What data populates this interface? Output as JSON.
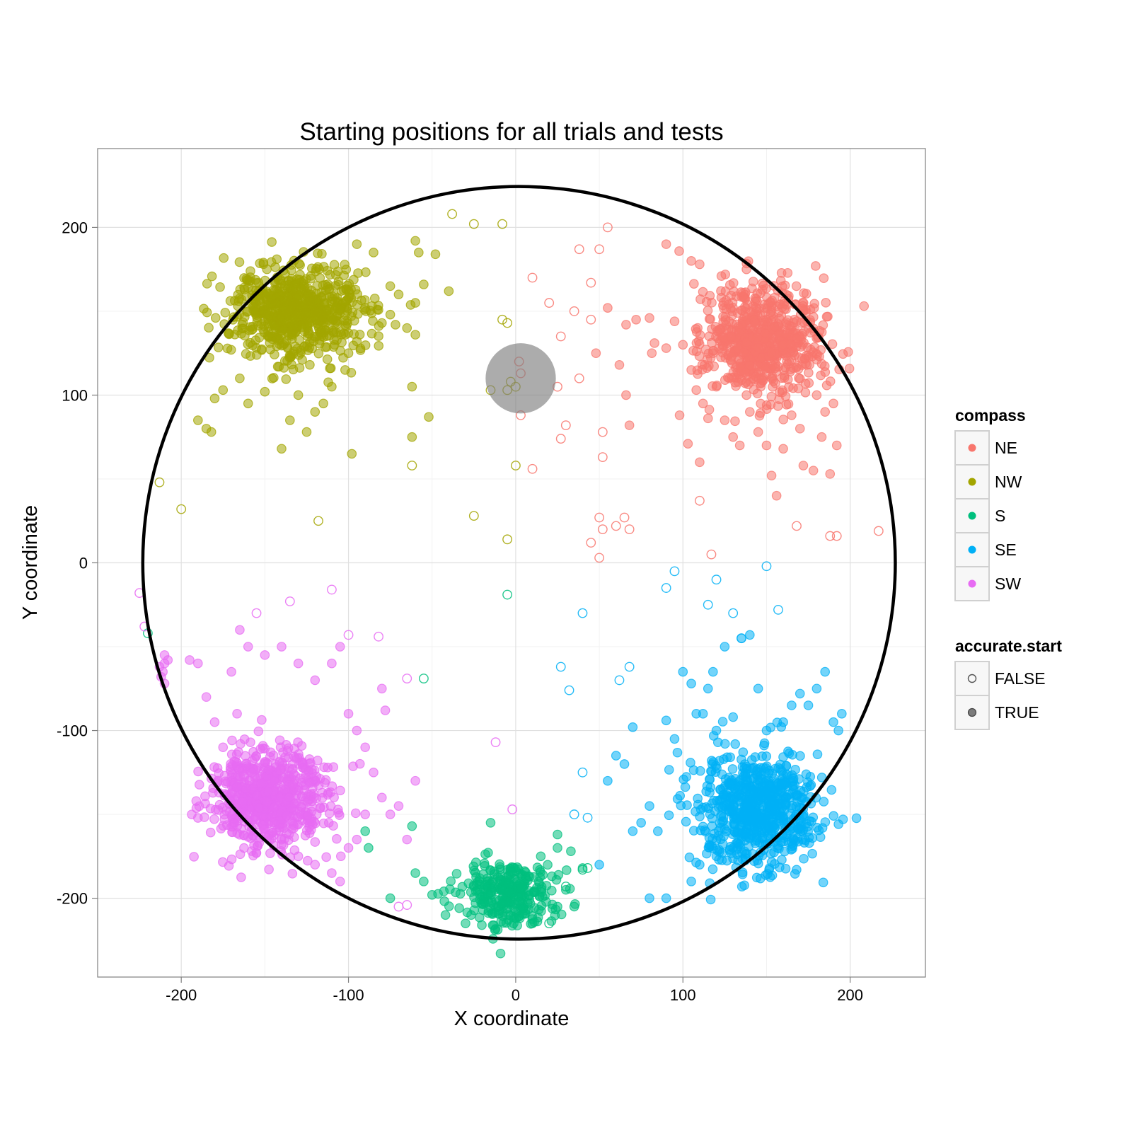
{
  "chart_data": {
    "type": "scatter",
    "title": "Starting positions for all trials and tests",
    "xlabel": "X coordinate",
    "ylabel": "Y coordinate",
    "xlim": [
      -250,
      245
    ],
    "ylim": [
      -247,
      247
    ],
    "x_ticks": [
      -200,
      -100,
      0,
      100,
      200
    ],
    "y_ticks": [
      -200,
      -100,
      0,
      100,
      200
    ],
    "x_tick_labels": [
      "-200",
      "-100",
      "0",
      "100",
      "200"
    ],
    "y_tick_labels": [
      "-200",
      "-100",
      "0",
      "100",
      "200"
    ],
    "grid": true,
    "arena_circle": {
      "cx": 2,
      "cy": 0,
      "r": 225
    },
    "platform": {
      "x": 3,
      "y": 110,
      "r": 21
    },
    "legends": [
      {
        "title": "compass",
        "entries": [
          {
            "label": "NE",
            "color": "#F8766D"
          },
          {
            "label": "NW",
            "color": "#A3A500"
          },
          {
            "label": "S",
            "color": "#00BF7D"
          },
          {
            "label": "SE",
            "color": "#00B0F6"
          },
          {
            "label": "SW",
            "color": "#E76BF3"
          }
        ]
      },
      {
        "title": "accurate.start",
        "entries": [
          {
            "label": "FALSE",
            "filled": false
          },
          {
            "label": "TRUE",
            "filled": true
          }
        ]
      }
    ],
    "legend_position": "right",
    "series": [
      {
        "name": "NE",
        "color": "#F8766D",
        "cluster": {
          "center": [
            148,
            132
          ],
          "spread": [
            17,
            17
          ],
          "count": 700
        },
        "points_true": [
          [
            90,
            190
          ],
          [
            105,
            180
          ],
          [
            110,
            178
          ],
          [
            123,
            171
          ],
          [
            138,
            175
          ],
          [
            83,
            131
          ],
          [
            90,
            128
          ],
          [
            95,
            144
          ],
          [
            100,
            130
          ],
          [
            105,
            115
          ],
          [
            108,
            103
          ],
          [
            112,
            95
          ],
          [
            120,
            105
          ],
          [
            125,
            85
          ],
          [
            130,
            75
          ],
          [
            134,
            70
          ],
          [
            138,
            100
          ],
          [
            140,
            90
          ],
          [
            145,
            78
          ],
          [
            150,
            70
          ],
          [
            153,
            52
          ],
          [
            156,
            40
          ],
          [
            160,
            68
          ],
          [
            165,
            88
          ],
          [
            170,
            80
          ],
          [
            172,
            58
          ],
          [
            178,
            55
          ],
          [
            183,
            75
          ],
          [
            180,
            100
          ],
          [
            185,
            90
          ],
          [
            190,
            95
          ],
          [
            188,
            53
          ],
          [
            192,
            70
          ],
          [
            66,
            142
          ],
          [
            72,
            145
          ],
          [
            80,
            146
          ],
          [
            62,
            118
          ],
          [
            66,
            100
          ],
          [
            68,
            82
          ],
          [
            55,
            152
          ],
          [
            48,
            125
          ],
          [
            110,
            60
          ],
          [
            103,
            71
          ],
          [
            98,
            88
          ],
          [
            113,
            118
          ],
          [
            118,
            125
          ]
        ],
        "points_false": [
          [
            10,
            170
          ],
          [
            20,
            155
          ],
          [
            35,
            150
          ],
          [
            38,
            187
          ],
          [
            50,
            187
          ],
          [
            45,
            167
          ],
          [
            55,
            200
          ],
          [
            45,
            145
          ],
          [
            27,
            135
          ],
          [
            38,
            110
          ],
          [
            25,
            105
          ],
          [
            30,
            82
          ],
          [
            27,
            74
          ],
          [
            10,
            56
          ],
          [
            3,
            88
          ],
          [
            52,
            78
          ],
          [
            52,
            63
          ],
          [
            50,
            27
          ],
          [
            52,
            20
          ],
          [
            60,
            22
          ],
          [
            65,
            27
          ],
          [
            68,
            20
          ],
          [
            45,
            12
          ],
          [
            50,
            3
          ],
          [
            110,
            37
          ],
          [
            117,
            5
          ],
          [
            168,
            22
          ],
          [
            188,
            16
          ],
          [
            192,
            16
          ],
          [
            217,
            19
          ],
          [
            2,
            120
          ],
          [
            3,
            113
          ]
        ]
      },
      {
        "name": "NW",
        "color": "#A3A500",
        "cluster": {
          "center": [
            -130,
            150
          ],
          "spread": [
            20,
            14
          ],
          "count": 700
        },
        "points_true": [
          [
            -95,
            190
          ],
          [
            -85,
            185
          ],
          [
            -75,
            165
          ],
          [
            -70,
            160
          ],
          [
            -60,
            192
          ],
          [
            -58,
            185
          ],
          [
            -48,
            184
          ],
          [
            -40,
            162
          ],
          [
            -55,
            166
          ],
          [
            -60,
            155
          ],
          [
            -65,
            140
          ],
          [
            -75,
            148
          ],
          [
            -80,
            143
          ],
          [
            -90,
            152
          ],
          [
            -95,
            132
          ],
          [
            -100,
            125
          ],
          [
            -102,
            115
          ],
          [
            -110,
            105
          ],
          [
            -115,
            95
          ],
          [
            -120,
            90
          ],
          [
            -125,
            78
          ],
          [
            -135,
            85
          ],
          [
            -140,
            68
          ],
          [
            -150,
            102
          ],
          [
            -160,
            95
          ],
          [
            -165,
            110
          ],
          [
            -175,
            103
          ],
          [
            -180,
            98
          ],
          [
            -190,
            85
          ],
          [
            -185,
            80
          ],
          [
            -182,
            78
          ],
          [
            -62,
            105
          ],
          [
            -62,
            75
          ],
          [
            -52,
            87
          ],
          [
            -60,
            136
          ],
          [
            -98,
            65
          ],
          [
            -130,
            100
          ]
        ],
        "points_false": [
          [
            -38,
            208
          ],
          [
            -25,
            202
          ],
          [
            -8,
            202
          ],
          [
            -8,
            145
          ],
          [
            -5,
            143
          ],
          [
            -15,
            103
          ],
          [
            -5,
            103
          ],
          [
            -3,
            108
          ],
          [
            0,
            105
          ],
          [
            -62,
            58
          ],
          [
            0,
            58
          ],
          [
            -25,
            28
          ],
          [
            -5,
            14
          ],
          [
            -200,
            32
          ],
          [
            -213,
            48
          ],
          [
            -118,
            25
          ]
        ]
      },
      {
        "name": "S",
        "color": "#00BF7D",
        "cluster": {
          "center": [
            -5,
            -197
          ],
          "spread": [
            15,
            10
          ],
          "count": 300
        },
        "points_true": [
          [
            -62,
            -157
          ],
          [
            -75,
            -200
          ],
          [
            -60,
            -185
          ],
          [
            -50,
            -198
          ],
          [
            -42,
            -210
          ],
          [
            -30,
            -215
          ],
          [
            -15,
            -155
          ],
          [
            15,
            -175
          ],
          [
            25,
            -162
          ],
          [
            25,
            -170
          ],
          [
            33,
            -172
          ],
          [
            40,
            -182
          ],
          [
            35,
            -205
          ],
          [
            25,
            -205
          ],
          [
            30,
            -195
          ],
          [
            -90,
            -160
          ],
          [
            -88,
            -170
          ],
          [
            -55,
            -190
          ],
          [
            10,
            -215
          ]
        ],
        "points_false": [
          [
            -5,
            -19
          ],
          [
            -55,
            -69
          ],
          [
            -220,
            -42
          ],
          [
            43,
            -182
          ],
          [
            40,
            -183
          ],
          [
            30,
            -193
          ],
          [
            20,
            -215
          ]
        ]
      },
      {
        "name": "SE",
        "color": "#00B0F6",
        "cluster": {
          "center": [
            145,
            -148
          ],
          "spread": [
            18,
            17
          ],
          "count": 700
        },
        "points_true": [
          [
            90,
            -94
          ],
          [
            95,
            -105
          ],
          [
            100,
            -65
          ],
          [
            105,
            -72
          ],
          [
            108,
            -90
          ],
          [
            112,
            -90
          ],
          [
            115,
            -75
          ],
          [
            118,
            -65
          ],
          [
            120,
            -100
          ],
          [
            125,
            -50
          ],
          [
            130,
            -92
          ],
          [
            135,
            -45
          ],
          [
            140,
            -43
          ],
          [
            145,
            -75
          ],
          [
            150,
            -100
          ],
          [
            160,
            -95
          ],
          [
            165,
            -85
          ],
          [
            170,
            -78
          ],
          [
            175,
            -85
          ],
          [
            180,
            -75
          ],
          [
            185,
            -65
          ],
          [
            190,
            -95
          ],
          [
            193,
            -100
          ],
          [
            195,
            -90
          ],
          [
            80,
            -145
          ],
          [
            75,
            -155
          ],
          [
            70,
            -160
          ],
          [
            65,
            -120
          ],
          [
            60,
            -115
          ],
          [
            70,
            -98
          ],
          [
            80,
            -200
          ],
          [
            90,
            -200
          ],
          [
            105,
            -190
          ],
          [
            110,
            -180
          ],
          [
            120,
            -175
          ],
          [
            130,
            -170
          ],
          [
            50,
            -180
          ],
          [
            55,
            -130
          ],
          [
            85,
            -160
          ]
        ],
        "points_false": [
          [
            95,
            -5
          ],
          [
            90,
            -15
          ],
          [
            120,
            -10
          ],
          [
            115,
            -25
          ],
          [
            130,
            -30
          ],
          [
            135,
            -45
          ],
          [
            150,
            -2
          ],
          [
            157,
            -28
          ],
          [
            40,
            -30
          ],
          [
            27,
            -62
          ],
          [
            32,
            -76
          ],
          [
            62,
            -70
          ],
          [
            68,
            -62
          ],
          [
            40,
            -125
          ],
          [
            35,
            -150
          ],
          [
            43,
            -152
          ]
        ]
      },
      {
        "name": "SW",
        "color": "#E76BF3",
        "cluster": {
          "center": [
            -148,
            -140
          ],
          "spread": [
            18,
            15
          ],
          "count": 700
        },
        "points_true": [
          [
            -210,
            -55
          ],
          [
            -210,
            -60
          ],
          [
            -211,
            -65
          ],
          [
            -212,
            -68
          ],
          [
            -210,
            -72
          ],
          [
            -208,
            -58
          ],
          [
            -213,
            -62
          ],
          [
            -195,
            -58
          ],
          [
            -190,
            -60
          ],
          [
            -185,
            -80
          ],
          [
            -180,
            -95
          ],
          [
            -175,
            -110
          ],
          [
            -170,
            -65
          ],
          [
            -165,
            -40
          ],
          [
            -160,
            -50
          ],
          [
            -150,
            -55
          ],
          [
            -140,
            -50
          ],
          [
            -130,
            -60
          ],
          [
            -120,
            -70
          ],
          [
            -110,
            -60
          ],
          [
            -105,
            -50
          ],
          [
            -100,
            -90
          ],
          [
            -95,
            -100
          ],
          [
            -90,
            -110
          ],
          [
            -85,
            -125
          ],
          [
            -80,
            -140
          ],
          [
            -75,
            -150
          ],
          [
            -70,
            -145
          ],
          [
            -65,
            -165
          ],
          [
            -60,
            -130
          ],
          [
            -80,
            -75
          ],
          [
            -78,
            -88
          ],
          [
            -90,
            -150
          ],
          [
            -95,
            -165
          ],
          [
            -100,
            -170
          ],
          [
            -105,
            -190
          ],
          [
            -110,
            -185
          ],
          [
            -120,
            -180
          ],
          [
            -130,
            -175
          ],
          [
            -140,
            -168
          ]
        ],
        "points_false": [
          [
            -225,
            -18
          ],
          [
            -222,
            -38
          ],
          [
            -135,
            -23
          ],
          [
            -110,
            -16
          ],
          [
            -82,
            -44
          ],
          [
            -100,
            -43
          ],
          [
            -155,
            -30
          ],
          [
            -65,
            -69
          ],
          [
            -65,
            -204
          ],
          [
            -70,
            -205
          ],
          [
            -12,
            -107
          ],
          [
            -2,
            -147
          ]
        ]
      }
    ]
  }
}
